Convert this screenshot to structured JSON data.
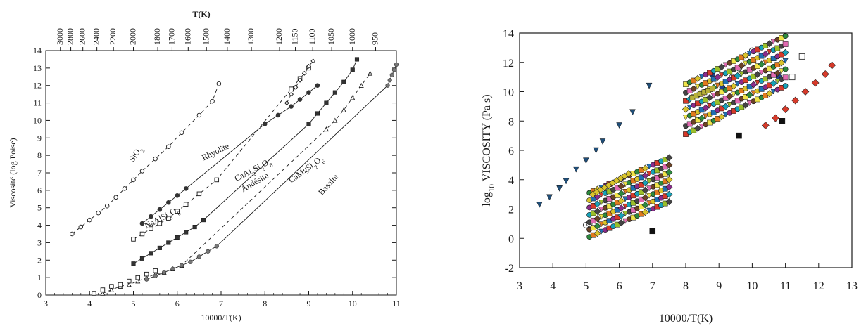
{
  "figure": {
    "colors": {
      "ink": "#1a1a1a",
      "fill_dark": "#333333",
      "fill_gray": "#777777",
      "white": "#ffffff",
      "navy": "#1f4e79",
      "teal": "#2a7a8a"
    }
  },
  "chart_data": [
    {
      "type": "line",
      "ylabel": "Viscosité (log Poise)",
      "xlabel": "10000/T(K)",
      "top_axis_title": "T(K)",
      "xlim": [
        3,
        11
      ],
      "ylim": [
        0,
        14
      ],
      "x_ticks": [
        "3",
        "4",
        "5",
        "6",
        "7",
        "8",
        "9",
        "10",
        "11"
      ],
      "y_ticks": [
        "0",
        "1",
        "2",
        "3",
        "4",
        "5",
        "6",
        "7",
        "8",
        "9",
        "10",
        "11",
        "12",
        "13",
        "14"
      ],
      "top_ticks": [
        3000,
        2800,
        2600,
        2400,
        2200,
        2000,
        1800,
        1700,
        1600,
        1500,
        1400,
        1300,
        1200,
        1150,
        1100,
        1050,
        1000,
        950
      ],
      "grid": false,
      "series": [
        {
          "name": "SiO2",
          "label_text": "SiO₂",
          "marker": "circle-open",
          "line": "dashed",
          "x": [
            3.6,
            3.8,
            4.0,
            4.2,
            4.4,
            4.6,
            4.8,
            5.0,
            5.2,
            5.5,
            5.8,
            6.1,
            6.5,
            6.8,
            6.95
          ],
          "y": [
            3.5,
            3.9,
            4.3,
            4.7,
            5.1,
            5.6,
            6.1,
            6.6,
            7.1,
            7.8,
            8.5,
            9.3,
            10.3,
            11.1,
            12.1
          ]
        },
        {
          "name": "Rhyolite",
          "label_text": "Rhyolite",
          "marker": "circle-filled",
          "line": "solid",
          "x": [
            5.2,
            5.4,
            5.6,
            5.8,
            6.0,
            6.2,
            8.0,
            8.3,
            8.6,
            8.8,
            9.0,
            9.2
          ],
          "y": [
            4.1,
            4.5,
            4.9,
            5.3,
            5.7,
            6.1,
            9.8,
            10.3,
            10.8,
            11.2,
            11.6,
            12.0
          ]
        },
        {
          "name": "NaAlSi3O8",
          "label_text": "NaAlSi₃O₈",
          "marker": "square-open",
          "line": "dashed",
          "x": [
            5.0,
            5.2,
            5.4,
            5.6,
            5.8,
            6.0,
            6.2,
            6.5,
            6.9,
            8.6,
            8.8,
            9.0
          ],
          "y": [
            3.2,
            3.5,
            3.8,
            4.1,
            4.4,
            4.8,
            5.2,
            5.8,
            6.6,
            11.8,
            12.4,
            13.0
          ]
        },
        {
          "name": "CaAl2Si2O8",
          "label_text": "CaAl₂Si₂O₈",
          "marker": "diamond-open",
          "line": "dashed",
          "x": [
            8.5,
            8.6,
            8.7,
            8.8,
            8.9,
            9.0,
            9.1
          ],
          "y": [
            11.0,
            11.5,
            11.9,
            12.3,
            12.7,
            13.1,
            13.4
          ]
        },
        {
          "name": "Andésite",
          "label_text": "Andésite",
          "marker": "square-filled",
          "line": "solid",
          "x": [
            5.0,
            5.2,
            5.4,
            5.6,
            5.8,
            6.0,
            6.2,
            6.4,
            6.6,
            9.0,
            9.2,
            9.4,
            9.6,
            9.8,
            10.0,
            10.1
          ],
          "y": [
            1.8,
            2.1,
            2.4,
            2.7,
            3.0,
            3.3,
            3.6,
            3.9,
            4.3,
            9.8,
            10.4,
            11.0,
            11.6,
            12.2,
            12.9,
            13.5
          ]
        },
        {
          "name": "CaMgSi2O6",
          "label_text": "CaMgSi₂O₆",
          "marker": "triangle-open",
          "line": "dashed",
          "x": [
            4.3,
            4.5,
            4.7,
            4.9,
            5.1,
            5.3,
            5.5,
            5.7,
            5.9,
            6.1,
            9.4,
            9.6,
            9.8,
            10.0,
            10.2,
            10.4
          ],
          "y": [
            0.1,
            0.3,
            0.5,
            0.6,
            0.8,
            1.0,
            1.2,
            1.3,
            1.5,
            1.7,
            9.5,
            10.0,
            10.6,
            11.3,
            12.0,
            12.7
          ]
        },
        {
          "name": "Basalte",
          "label_text": "Basalte",
          "marker": "circle-gray",
          "line": "solid",
          "x": [
            5.3,
            5.5,
            5.7,
            5.9,
            6.1,
            6.3,
            6.5,
            6.7,
            6.9,
            10.8,
            10.85,
            10.9,
            10.95,
            11.0
          ],
          "y": [
            0.9,
            1.1,
            1.3,
            1.5,
            1.7,
            1.9,
            2.2,
            2.5,
            2.8,
            12.0,
            12.3,
            12.6,
            12.9,
            13.2
          ]
        },
        {
          "name": "open squares (unlabeled)",
          "marker": "square-open",
          "line": "none",
          "x": [
            4.1,
            4.3,
            4.5,
            4.7,
            4.9,
            5.1,
            5.3,
            5.5
          ],
          "y": [
            0.1,
            0.3,
            0.5,
            0.6,
            0.8,
            1.0,
            1.2,
            1.4
          ]
        }
      ]
    },
    {
      "type": "scatter",
      "ylabel": "log₁₀ VISCOSITY (Pa s)",
      "xlabel": "10000/T(K)",
      "xlim": [
        3,
        13
      ],
      "ylim": [
        -2,
        14
      ],
      "x_ticks": [
        "3",
        "4",
        "5",
        "6",
        "7",
        "8",
        "9",
        "10",
        "11",
        "12",
        "13"
      ],
      "y_ticks": [
        "-2",
        "0",
        "2",
        "4",
        "6",
        "8",
        "10",
        "12",
        "14"
      ],
      "grid": false,
      "series": [
        {
          "name": "navy triangles",
          "marker": "triangle-down",
          "color": "#1f4e79",
          "x": [
            3.6,
            3.9,
            4.2,
            4.4,
            4.7,
            5.0,
            5.3,
            5.5,
            6.0,
            6.4,
            6.9
          ],
          "y": [
            2.3,
            2.8,
            3.4,
            3.9,
            4.7,
            5.3,
            6.0,
            6.6,
            7.7,
            8.6,
            10.4
          ]
        },
        {
          "name": "red diamonds",
          "marker": "diamond",
          "color": "#d63a2a",
          "x": [
            10.4,
            10.7,
            11.0,
            11.3,
            11.6,
            11.9,
            12.2,
            12.4
          ],
          "y": [
            7.7,
            8.2,
            8.8,
            9.4,
            10.0,
            10.6,
            11.2,
            11.8
          ]
        },
        {
          "name": "open circles",
          "marker": "circle-open",
          "color": "#333333",
          "x": [
            5.0,
            5.1,
            5.3,
            9.2,
            9.4,
            9.6,
            9.8,
            10.0
          ],
          "y": [
            0.9,
            1.0,
            1.2,
            10.2,
            11.0,
            11.6,
            12.2,
            12.8
          ]
        },
        {
          "name": "dark blue circles",
          "marker": "circle",
          "color": "#1f3f8a",
          "x": [
            8.8,
            9.1,
            10.8
          ],
          "y": [
            11.2,
            10.3,
            11.0
          ]
        },
        {
          "name": "black squares",
          "marker": "square",
          "color": "#111111",
          "x": [
            9.6,
            10.9,
            7.0
          ],
          "y": [
            7.0,
            8.0,
            0.5
          ]
        },
        {
          "name": "open squares",
          "marker": "square-open",
          "color": "#333333",
          "x": [
            11.5,
            11.2
          ],
          "y": [
            12.4,
            11.0
          ]
        }
      ]
    }
  ]
}
